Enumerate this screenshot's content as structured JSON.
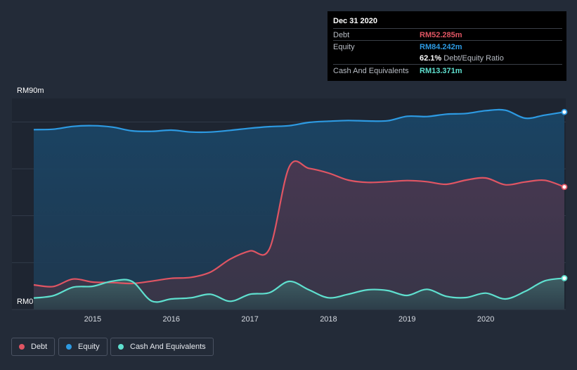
{
  "colors": {
    "debt": "#e05563",
    "equity": "#2d9ae2",
    "cash": "#5fe0cf",
    "grid": "#323b49"
  },
  "tooltip": {
    "date": "Dec 31 2020",
    "debt_label": "Debt",
    "debt_value": "RM52.285m",
    "equity_label": "Equity",
    "equity_value": "RM84.242m",
    "ratio_value": "62.1%",
    "ratio_label": "Debt/Equity Ratio",
    "cash_label": "Cash And Equivalents",
    "cash_value": "RM13.371m"
  },
  "legend": {
    "debt": "Debt",
    "equity": "Equity",
    "cash": "Cash And Equivalents"
  },
  "chart_data": {
    "type": "area",
    "title": "",
    "xlabel": "",
    "ylabel": "",
    "ylim": [
      0,
      90
    ],
    "xlim": [
      2014.25,
      2021.0
    ],
    "y_tick_labels": [
      "RM0",
      "RM90m"
    ],
    "x_ticks": [
      2015,
      2016,
      2017,
      2018,
      2019,
      2020
    ],
    "x_tick_labels": [
      "2015",
      "2016",
      "2017",
      "2018",
      "2019",
      "2020"
    ],
    "series": [
      {
        "name": "Equity",
        "key": "equity",
        "x": [
          2014.25,
          2014.5,
          2014.75,
          2015.0,
          2015.25,
          2015.5,
          2015.75,
          2016.0,
          2016.25,
          2016.5,
          2016.75,
          2017.0,
          2017.25,
          2017.5,
          2017.75,
          2018.0,
          2018.25,
          2018.5,
          2018.75,
          2019.0,
          2019.25,
          2019.5,
          2019.75,
          2020.0,
          2020.25,
          2020.5,
          2020.75,
          2021.0
        ],
        "values": [
          76.7,
          76.9,
          78.1,
          78.4,
          77.8,
          76.2,
          76.0,
          76.5,
          75.7,
          75.7,
          76.4,
          77.3,
          78.0,
          78.4,
          79.8,
          80.3,
          80.6,
          80.4,
          80.5,
          82.4,
          82.3,
          83.3,
          83.6,
          84.8,
          85.0,
          81.6,
          82.9,
          84.242
        ]
      },
      {
        "name": "Debt",
        "key": "debt",
        "x": [
          2014.25,
          2014.5,
          2014.75,
          2015.0,
          2015.25,
          2015.5,
          2015.75,
          2016.0,
          2016.25,
          2016.5,
          2016.75,
          2017.0,
          2017.25,
          2017.5,
          2017.75,
          2018.0,
          2018.25,
          2018.5,
          2018.75,
          2019.0,
          2019.25,
          2019.5,
          2019.75,
          2020.0,
          2020.25,
          2020.5,
          2020.75,
          2021.0
        ],
        "values": [
          10.5,
          9.8,
          13.0,
          11.7,
          11.5,
          11.1,
          12.1,
          13.3,
          13.7,
          16.0,
          21.5,
          25.0,
          26.0,
          60.8,
          60.2,
          58.2,
          55.2,
          54.2,
          54.5,
          55.0,
          54.5,
          53.4,
          55.2,
          56.1,
          53.2,
          54.4,
          55.1,
          52.285
        ]
      },
      {
        "name": "Cash And Equivalents",
        "key": "cash",
        "x": [
          2014.25,
          2014.5,
          2014.75,
          2015.0,
          2015.25,
          2015.5,
          2015.75,
          2016.0,
          2016.25,
          2016.5,
          2016.75,
          2017.0,
          2017.25,
          2017.5,
          2017.75,
          2018.0,
          2018.25,
          2018.5,
          2018.75,
          2019.0,
          2019.25,
          2019.5,
          2019.75,
          2020.0,
          2020.25,
          2020.5,
          2020.75,
          2021.0
        ],
        "values": [
          4.9,
          5.9,
          9.5,
          9.9,
          12.1,
          12.0,
          3.6,
          4.5,
          5.0,
          6.5,
          3.5,
          6.5,
          7.2,
          12.0,
          8.4,
          5.0,
          6.5,
          8.4,
          8.1,
          6.0,
          8.6,
          5.6,
          5.1,
          7.0,
          4.5,
          7.7,
          12.2,
          13.371
        ]
      }
    ]
  }
}
